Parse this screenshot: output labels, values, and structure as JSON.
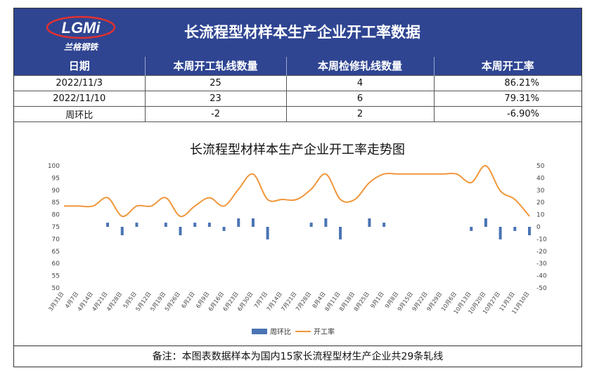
{
  "header": {
    "logo_text": "LGMi",
    "logo_subtext": "兰格钢铁",
    "title": "长流程型材样本生产企业开工率数据"
  },
  "table": {
    "columns": [
      "日期",
      "本周开工轧线数量",
      "本周检修轧线数量",
      "本周开工率"
    ],
    "rows": [
      [
        "2022/11/3",
        "25",
        "4",
        "86.21%"
      ],
      [
        "2022/11/10",
        "23",
        "6",
        "79.31%"
      ],
      [
        "周环比",
        "-2",
        "2",
        "-6.90%"
      ]
    ]
  },
  "note": "备注：本图表数据样本为国内15家长流程型材生产企业共29条轧线",
  "colors": {
    "header_bg": "#2f4592",
    "bar": "#4a74b4",
    "line": "#f0963a"
  },
  "chart_data": {
    "type": "bar+line",
    "title": "长流程型材样本生产企业开工率走势图",
    "categories": [
      "3月31日",
      "4月7日",
      "4月14日",
      "4月21日",
      "4月28日",
      "5月5日",
      "5月12日",
      "5月19日",
      "5月26日",
      "6月2日",
      "6月9日",
      "6月16日",
      "6月23日",
      "6月30日",
      "7月7日",
      "7月14日",
      "7月21日",
      "7月28日",
      "8月4日",
      "8月11日",
      "8月18日",
      "8月25日",
      "9月1日",
      "9月8日",
      "9月15日",
      "9月22日",
      "9月29日",
      "10月6日",
      "10月13日",
      "10月20日",
      "10月27日",
      "11月3日",
      "11月10日"
    ],
    "series": [
      {
        "name": "周环比",
        "type": "bar",
        "axis": "right",
        "values": [
          0,
          0,
          0,
          3.4,
          -6.9,
          3.4,
          0,
          3.4,
          -6.9,
          3.4,
          3.4,
          -3.4,
          6.9,
          6.9,
          -10.3,
          0,
          0,
          3.4,
          6.9,
          -10.3,
          0,
          6.9,
          3.4,
          0,
          0,
          0,
          0,
          0,
          -3.4,
          6.9,
          -10.3,
          -3.4,
          -6.9
        ]
      },
      {
        "name": "开工率",
        "type": "line",
        "axis": "left",
        "values": [
          83.5,
          83.5,
          83.5,
          86.9,
          79.3,
          83.5,
          83.5,
          86.9,
          79.3,
          83.5,
          86.9,
          83.5,
          90.4,
          96.6,
          86.2,
          86.2,
          86.2,
          90.4,
          96.6,
          86.2,
          86.2,
          93.1,
          96.6,
          96.6,
          96.6,
          96.6,
          96.6,
          96.6,
          93.1,
          100,
          89.7,
          86.2,
          79.3
        ]
      }
    ],
    "y_left": {
      "min": 50,
      "max": 100,
      "step": 5
    },
    "y_right": {
      "min": -50,
      "max": 50,
      "step": 10
    },
    "legend": {
      "position": "bottom"
    }
  }
}
